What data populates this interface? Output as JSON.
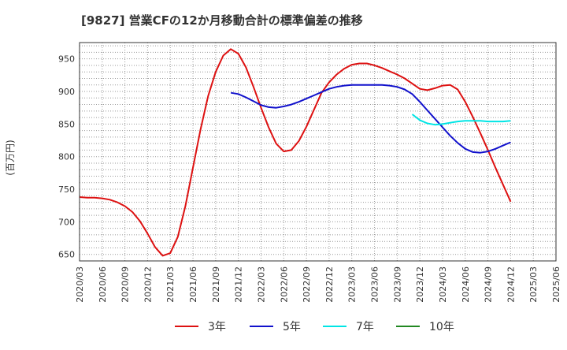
{
  "chart_data": {
    "type": "line",
    "title": "[9827]  営業CFの12か月移動合計の標準偏差の推移",
    "xlabel": "",
    "ylabel": "(百万円)",
    "ylim": [
      640,
      975
    ],
    "yticks": [
      650,
      700,
      750,
      800,
      850,
      900,
      950
    ],
    "xlim": [
      "2020-03",
      "2025-06"
    ],
    "xticks": [
      "2020/03",
      "2020/06",
      "2020/09",
      "2020/12",
      "2021/03",
      "2021/06",
      "2021/09",
      "2021/12",
      "2022/03",
      "2022/06",
      "2022/09",
      "2022/12",
      "2023/03",
      "2023/06",
      "2023/09",
      "2023/12",
      "2024/03",
      "2024/06",
      "2024/09",
      "2024/12",
      "2025/03",
      "2025/06"
    ],
    "grid": true,
    "legend_position": "bottom",
    "series": [
      {
        "name": "3年",
        "color": "#dd1111",
        "points": [
          [
            "2020-03",
            738
          ],
          [
            "2020-04",
            737
          ],
          [
            "2020-05",
            737
          ],
          [
            "2020-06",
            736
          ],
          [
            "2020-07",
            734
          ],
          [
            "2020-08",
            730
          ],
          [
            "2020-09",
            724
          ],
          [
            "2020-10",
            715
          ],
          [
            "2020-11",
            701
          ],
          [
            "2020-12",
            682
          ],
          [
            "2021-01",
            661
          ],
          [
            "2021-02",
            648
          ],
          [
            "2021-03",
            652
          ],
          [
            "2021-04",
            677
          ],
          [
            "2021-05",
            724
          ],
          [
            "2021-06",
            783
          ],
          [
            "2021-07",
            842
          ],
          [
            "2021-08",
            893
          ],
          [
            "2021-09",
            930
          ],
          [
            "2021-10",
            955
          ],
          [
            "2021-11",
            965
          ],
          [
            "2021-12",
            958
          ],
          [
            "2022-01",
            937
          ],
          [
            "2022-02",
            907
          ],
          [
            "2022-03",
            875
          ],
          [
            "2022-04",
            845
          ],
          [
            "2022-05",
            820
          ],
          [
            "2022-06",
            808
          ],
          [
            "2022-07",
            810
          ],
          [
            "2022-08",
            824
          ],
          [
            "2022-09",
            846
          ],
          [
            "2022-10",
            872
          ],
          [
            "2022-11",
            898
          ],
          [
            "2022-12",
            914
          ],
          [
            "2023-01",
            926
          ],
          [
            "2023-02",
            935
          ],
          [
            "2023-03",
            941
          ],
          [
            "2023-04",
            943
          ],
          [
            "2023-05",
            943
          ],
          [
            "2023-06",
            940
          ],
          [
            "2023-07",
            936
          ],
          [
            "2023-08",
            931
          ],
          [
            "2023-09",
            926
          ],
          [
            "2023-10",
            920
          ],
          [
            "2023-11",
            912
          ],
          [
            "2023-12",
            904
          ],
          [
            "2024-01",
            902
          ],
          [
            "2024-02",
            905
          ],
          [
            "2024-03",
            909
          ],
          [
            "2024-04",
            910
          ],
          [
            "2024-05",
            903
          ],
          [
            "2024-06",
            884
          ],
          [
            "2024-07",
            861
          ],
          [
            "2024-08",
            836
          ],
          [
            "2024-09",
            810
          ],
          [
            "2024-10",
            783
          ],
          [
            "2024-11",
            757
          ],
          [
            "2024-12",
            731
          ]
        ]
      },
      {
        "name": "5年",
        "color": "#1111cc",
        "points": [
          [
            "2021-11",
            898
          ],
          [
            "2021-12",
            896
          ],
          [
            "2022-01",
            891
          ],
          [
            "2022-02",
            885
          ],
          [
            "2022-03",
            879
          ],
          [
            "2022-04",
            876
          ],
          [
            "2022-05",
            875
          ],
          [
            "2022-06",
            877
          ],
          [
            "2022-07",
            880
          ],
          [
            "2022-08",
            884
          ],
          [
            "2022-09",
            889
          ],
          [
            "2022-10",
            894
          ],
          [
            "2022-11",
            899
          ],
          [
            "2022-12",
            904
          ],
          [
            "2023-01",
            907
          ],
          [
            "2023-02",
            909
          ],
          [
            "2023-03",
            910
          ],
          [
            "2023-04",
            910
          ],
          [
            "2023-05",
            910
          ],
          [
            "2023-06",
            910
          ],
          [
            "2023-07",
            910
          ],
          [
            "2023-08",
            909
          ],
          [
            "2023-09",
            907
          ],
          [
            "2023-10",
            903
          ],
          [
            "2023-11",
            896
          ],
          [
            "2023-12",
            884
          ],
          [
            "2024-01",
            871
          ],
          [
            "2024-02",
            858
          ],
          [
            "2024-03",
            845
          ],
          [
            "2024-04",
            832
          ],
          [
            "2024-05",
            821
          ],
          [
            "2024-06",
            812
          ],
          [
            "2024-07",
            807
          ],
          [
            "2024-08",
            806
          ],
          [
            "2024-09",
            808
          ],
          [
            "2024-10",
            812
          ],
          [
            "2024-11",
            817
          ],
          [
            "2024-12",
            822
          ]
        ]
      },
      {
        "name": "7年",
        "color": "#00e5e5",
        "points": [
          [
            "2023-11",
            865
          ],
          [
            "2023-12",
            856
          ],
          [
            "2024-01",
            851
          ],
          [
            "2024-02",
            849
          ],
          [
            "2024-03",
            850
          ],
          [
            "2024-04",
            852
          ],
          [
            "2024-05",
            854
          ],
          [
            "2024-06",
            855
          ],
          [
            "2024-07",
            855
          ],
          [
            "2024-08",
            855
          ],
          [
            "2024-09",
            854
          ],
          [
            "2024-10",
            854
          ],
          [
            "2024-11",
            854
          ],
          [
            "2024-12",
            855
          ]
        ]
      },
      {
        "name": "10年",
        "color": "#228822",
        "points": []
      }
    ]
  }
}
